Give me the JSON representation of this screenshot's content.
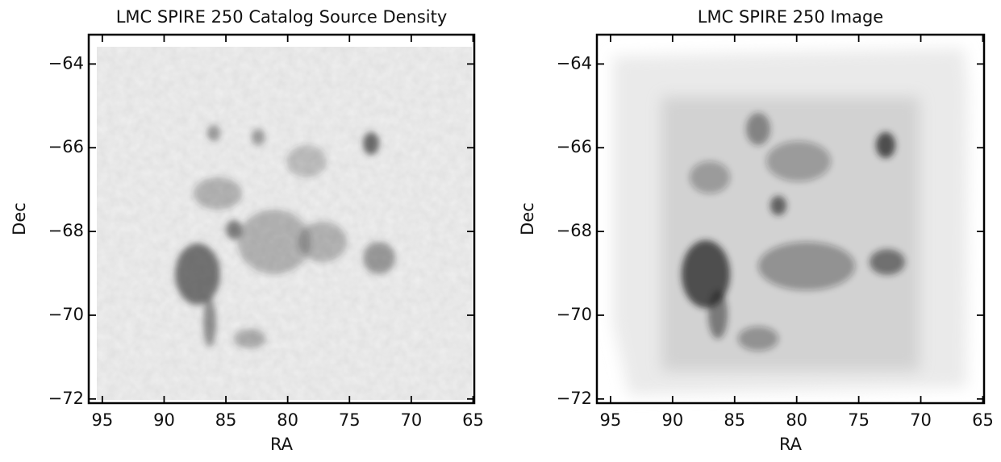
{
  "chart_data": [
    {
      "type": "image",
      "title": "LMC SPIRE 250 Catalog Source Density",
      "xlabel": "RA",
      "ylabel": "Dec",
      "xlim": [
        96.1,
        64.9
      ],
      "ylim": [
        -72.1,
        -63.3
      ],
      "xticks": [
        95,
        90,
        85,
        80,
        75,
        70,
        65
      ],
      "yticks": [
        {
          "value": -72,
          "label": "−72"
        },
        {
          "value": -70,
          "label": "−70"
        },
        {
          "value": -68,
          "label": "−68"
        },
        {
          "value": -66,
          "label": "−66"
        },
        {
          "value": -64,
          "label": "−64"
        }
      ]
    },
    {
      "type": "image",
      "title": "LMC SPIRE 250 Image",
      "xlabel": "RA",
      "ylabel": "Dec",
      "xlim": [
        96.1,
        64.9
      ],
      "ylim": [
        -72.1,
        -63.3
      ],
      "xticks": [
        95,
        90,
        85,
        80,
        75,
        70,
        65
      ],
      "yticks": [
        {
          "value": -72,
          "label": "−72"
        },
        {
          "value": -70,
          "label": "−70"
        },
        {
          "value": -68,
          "label": "−68"
        },
        {
          "value": -66,
          "label": "−66"
        },
        {
          "value": -64,
          "label": "−64"
        }
      ]
    }
  ]
}
